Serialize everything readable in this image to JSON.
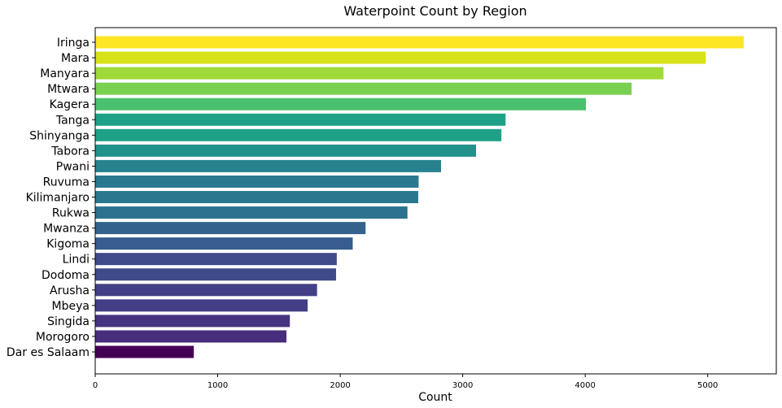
{
  "chart_data": {
    "type": "bar",
    "orientation": "horizontal",
    "title": "Waterpoint Count by Region",
    "xlabel": "Count",
    "ylabel": "",
    "categories": [
      "Iringa",
      "Mara",
      "Manyara",
      "Mtwara",
      "Kagera",
      "Tanga",
      "Shinyanga",
      "Tabora",
      "Pwani",
      "Ruvuma",
      "Kilimanjaro",
      "Rukwa",
      "Mwanza",
      "Kigoma",
      "Lindi",
      "Dodoma",
      "Arusha",
      "Mbeya",
      "Singida",
      "Morogoro",
      "Dar es Salaam"
    ],
    "values": [
      5294,
      4984,
      4639,
      4379,
      4006,
      3350,
      3316,
      3109,
      2823,
      2640,
      2637,
      2549,
      2207,
      2102,
      1972,
      1966,
      1811,
      1734,
      1589,
      1561,
      805
    ],
    "colors": [
      "#fde725",
      "#d8e219",
      "#a0da39",
      "#7ad151",
      "#4ac16d",
      "#1fa187",
      "#1fa187",
      "#21918c",
      "#26828e",
      "#2a788e",
      "#2a788e",
      "#2c728e",
      "#33638d",
      "#365d8d",
      "#3e4a89",
      "#3e4a89",
      "#424086",
      "#433e85",
      "#46337f",
      "#472d7b",
      "#440154"
    ],
    "xlim": [
      0,
      5560
    ],
    "xticks": [
      0,
      1000,
      2000,
      3000,
      4000,
      5000
    ],
    "grid": false,
    "legend": "none"
  }
}
